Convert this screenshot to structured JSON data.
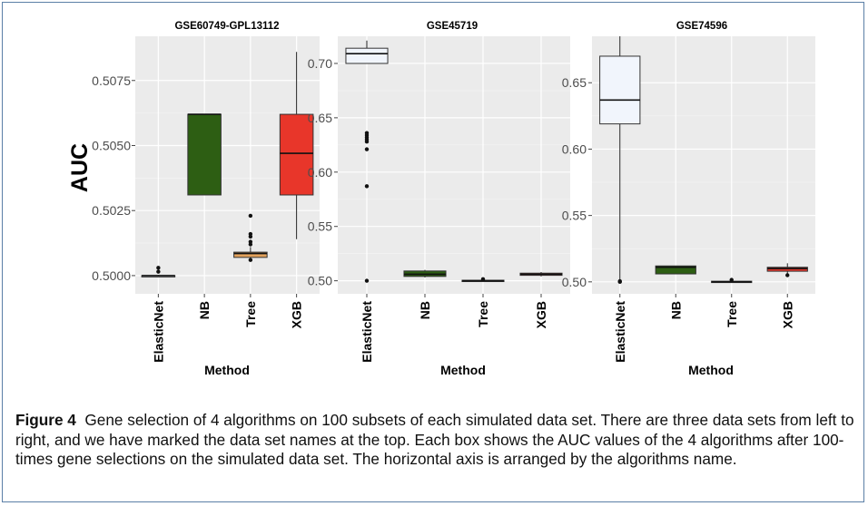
{
  "figure": {
    "y_label": "AUC",
    "x_label": "Method",
    "categories": [
      "ElasticNet",
      "NB",
      "Tree",
      "XGB"
    ],
    "colors": {
      "ElasticNet": "#f1f5fc",
      "NB": "#2d5e13",
      "Tree": "#e3a25c",
      "XGB": "#e8362a",
      "panel_bg": "#ebebeb",
      "grid": "#ffffff"
    }
  },
  "chart_data": [
    {
      "type": "boxplot",
      "title": "GSE60749-GPL13112",
      "xlabel": "Method",
      "ylabel": "AUC",
      "categories": [
        "ElasticNet",
        "NB",
        "Tree",
        "XGB"
      ],
      "ylim": [
        0.4993,
        0.5092
      ],
      "yticks": [
        0.5,
        0.5025,
        0.505,
        0.5075
      ],
      "ytick_labels": [
        "0.5000",
        "0.5025",
        "0.5050",
        "0.5075"
      ],
      "grid": true,
      "boxes": [
        {
          "name": "ElasticNet",
          "min": 0.5,
          "q1": 0.5,
          "median": 0.5,
          "q3": 0.5,
          "max": 0.50003,
          "outliers": [
            0.5003,
            0.50015
          ]
        },
        {
          "name": "NB",
          "min": 0.5031,
          "q1": 0.5031,
          "median": 0.5062,
          "q3": 0.5062,
          "max": 0.5062,
          "outliers": []
        },
        {
          "name": "Tree",
          "min": 0.5006,
          "q1": 0.5007,
          "median": 0.50085,
          "q3": 0.5009,
          "max": 0.5011,
          "outliers": [
            0.5023,
            0.5016,
            0.5015,
            0.5013,
            0.5012,
            0.5006
          ]
        },
        {
          "name": "XGB",
          "min": 0.5014,
          "q1": 0.5031,
          "median": 0.5047,
          "q3": 0.5062,
          "max": 0.5086,
          "outliers": []
        }
      ]
    },
    {
      "type": "boxplot",
      "title": "GSE45719",
      "xlabel": "Method",
      "ylabel": "",
      "categories": [
        "ElasticNet",
        "NB",
        "Tree",
        "XGB"
      ],
      "ylim": [
        0.488,
        0.725
      ],
      "yticks": [
        0.5,
        0.55,
        0.6,
        0.65,
        0.7
      ],
      "ytick_labels": [
        "0.50",
        "0.55",
        "0.60",
        "0.65",
        "0.70"
      ],
      "grid": true,
      "boxes": [
        {
          "name": "ElasticNet",
          "min": 0.7,
          "q1": 0.7,
          "median": 0.709,
          "q3": 0.714,
          "max": 0.721,
          "outliers": [
            0.636,
            0.634,
            0.632,
            0.63,
            0.628,
            0.621,
            0.587,
            0.5
          ]
        },
        {
          "name": "NB",
          "min": 0.503,
          "q1": 0.504,
          "median": 0.506,
          "q3": 0.509,
          "max": 0.51,
          "outliers": []
        },
        {
          "name": "Tree",
          "min": 0.5,
          "q1": 0.5,
          "median": 0.5,
          "q3": 0.5005,
          "max": 0.501,
          "outliers": [
            0.5015
          ]
        },
        {
          "name": "XGB",
          "min": 0.504,
          "q1": 0.505,
          "median": 0.506,
          "q3": 0.507,
          "max": 0.508,
          "outliers": []
        }
      ]
    },
    {
      "type": "boxplot",
      "title": "GSE74596",
      "xlabel": "Method",
      "ylabel": "",
      "categories": [
        "ElasticNet",
        "NB",
        "Tree",
        "XGB"
      ],
      "ylim": [
        0.491,
        0.685
      ],
      "yticks": [
        0.5,
        0.55,
        0.6,
        0.65
      ],
      "ytick_labels": [
        "0.50",
        "0.55",
        "0.60",
        "0.65"
      ],
      "grid": true,
      "boxes": [
        {
          "name": "ElasticNet",
          "min": 0.5,
          "q1": 0.619,
          "median": 0.637,
          "q3": 0.67,
          "max": 0.685,
          "outliers": [
            0.5,
            0.5005
          ]
        },
        {
          "name": "NB",
          "min": 0.506,
          "q1": 0.506,
          "median": 0.511,
          "q3": 0.512,
          "max": 0.512,
          "outliers": []
        },
        {
          "name": "Tree",
          "min": 0.5,
          "q1": 0.5,
          "median": 0.5,
          "q3": 0.5005,
          "max": 0.501,
          "outliers": [
            0.5015
          ]
        },
        {
          "name": "XGB",
          "min": 0.505,
          "q1": 0.508,
          "median": 0.51,
          "q3": 0.511,
          "max": 0.514,
          "outliers": [
            0.505
          ]
        }
      ]
    }
  ],
  "caption": {
    "label": "Figure 4",
    "text": "Gene selection of 4 algorithms on 100 subsets of each simulated data set. There are three data sets from left to right, and we have marked the data set names at the top. Each box shows the AUC values of the 4 algorithms after 100-times gene selections on the simulated data set. The horizontal axis is arranged by the algorithms name."
  }
}
